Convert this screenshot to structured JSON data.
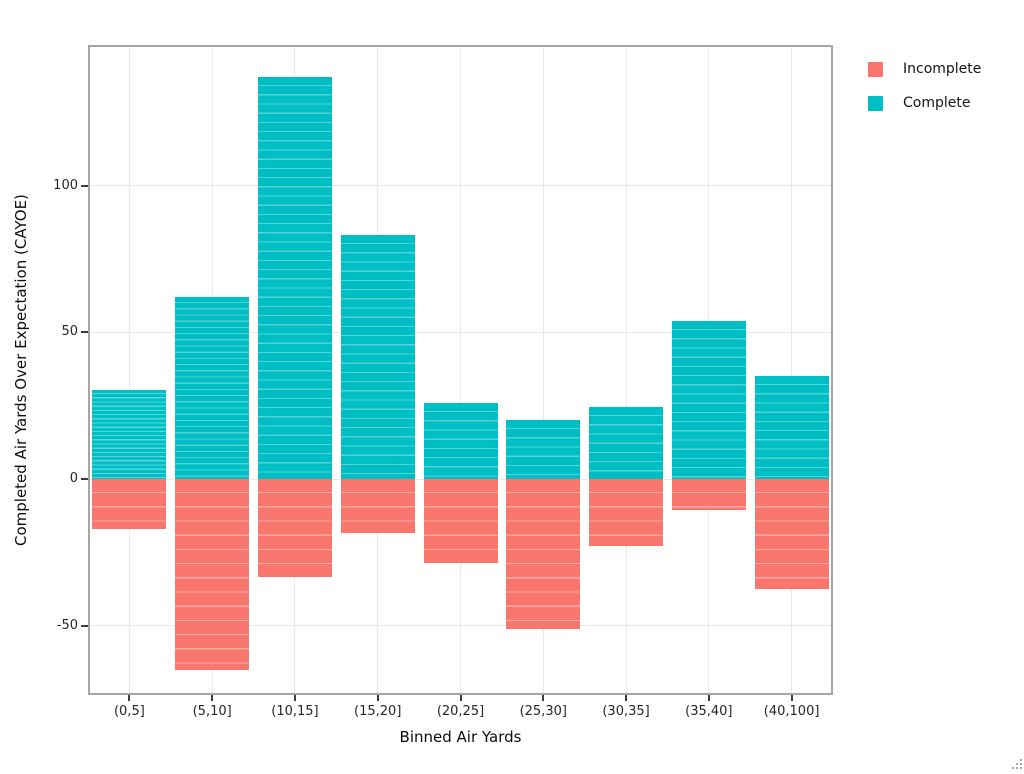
{
  "chart_data": {
    "type": "bar",
    "stacked": true,
    "orientation": "vertical",
    "title": "",
    "xlabel": "Binned Air Yards",
    "ylabel": "Completed Air Yards Over Expectation (CAYOE)",
    "categories": [
      "(0,5]",
      "(5,10]",
      "(10,15]",
      "(15,20]",
      "(20,25]",
      "(25,30]",
      "(30,35]",
      "(35,40]",
      "(40,100]"
    ],
    "series": [
      {
        "name": "Incomplete",
        "color": "#F8766D",
        "values": [
          -17,
          -65,
          -33.5,
          -18.5,
          -28.5,
          -51,
          -23,
          -10.5,
          -37.5
        ]
      },
      {
        "name": "Complete",
        "color": "#00BFC4",
        "values": [
          30.5,
          62,
          137,
          83,
          26,
          20,
          24.5,
          54,
          35
        ]
      }
    ],
    "y_ticks": [
      100,
      50,
      0,
      -50
    ],
    "ylim": [
      -73,
      148
    ],
    "grid": true,
    "panel_background": "#FFFFFF",
    "gridline_color": "#E9E9E9",
    "panel_border_color": "#A5A5A5",
    "legend_position": "top-right-outside",
    "legend": {
      "items": [
        {
          "label": "Incomplete",
          "color": "#F8766D"
        },
        {
          "label": "Complete",
          "color": "#00BFC4"
        }
      ]
    }
  },
  "icons": {
    "resize_grip": "resize-grip-icon"
  }
}
